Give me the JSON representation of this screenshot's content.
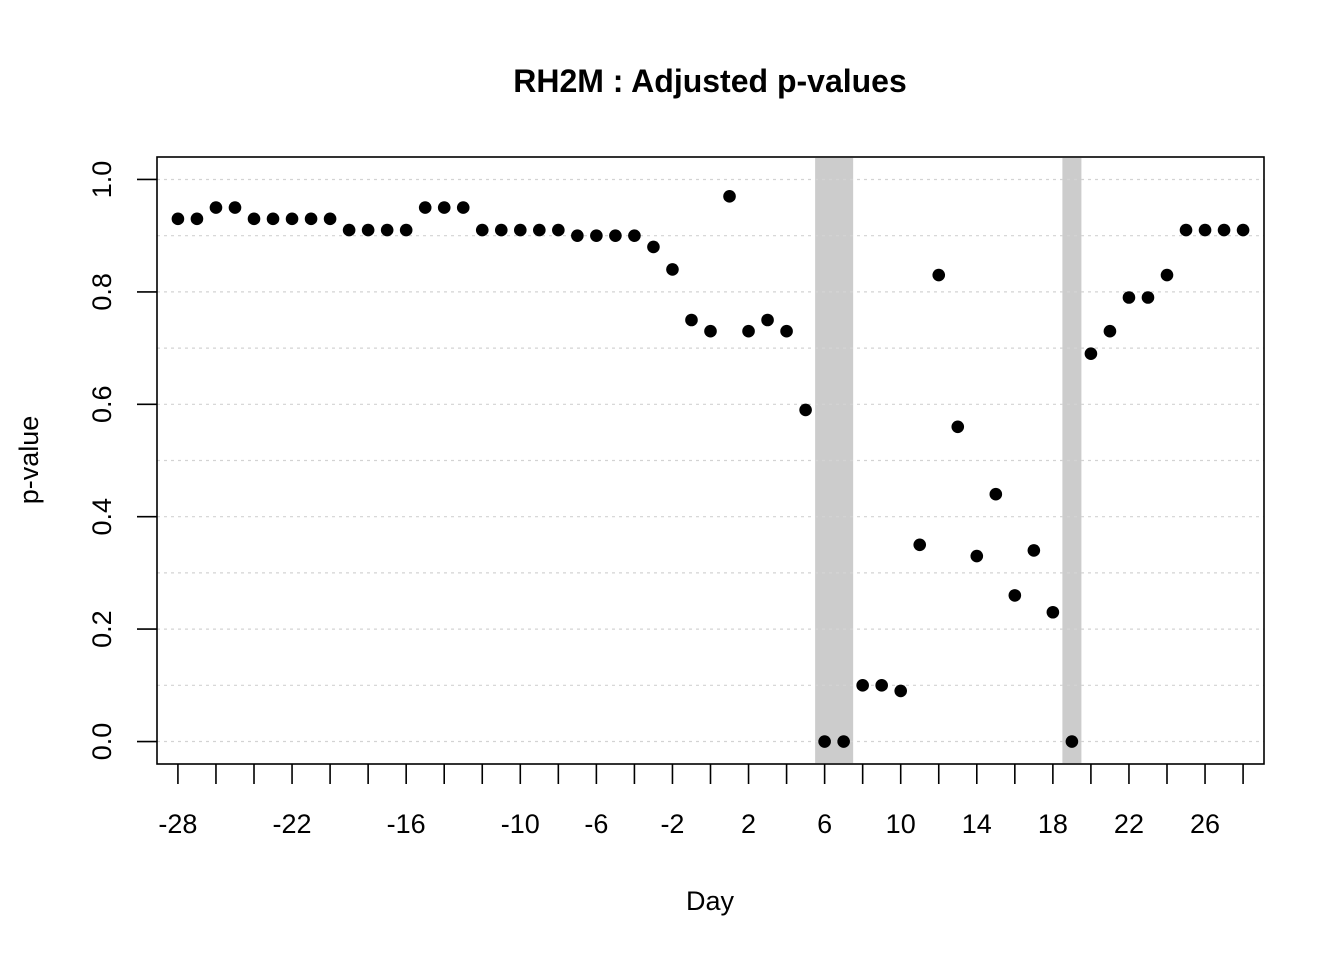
{
  "chart_data": {
    "type": "scatter",
    "title": "RH2M : Adjusted p-values",
    "xlabel": "Day",
    "ylabel": "p-value",
    "xlim": [
      -29.1,
      29.1
    ],
    "ylim": [
      -0.04,
      1.04
    ],
    "x_tick_values": [
      -28,
      -26,
      -24,
      -22,
      -20,
      -18,
      -16,
      -14,
      -12,
      -10,
      -8,
      -6,
      -4,
      -2,
      0,
      2,
      4,
      6,
      8,
      10,
      12,
      14,
      16,
      18,
      20,
      22,
      24,
      26,
      28
    ],
    "x_tick_labels": [
      "-28",
      "",
      "",
      "-22",
      "",
      "",
      "-16",
      "",
      "",
      "-10",
      "",
      "-6",
      "",
      "-2",
      "",
      "2",
      "",
      "6",
      "",
      "10",
      "",
      "14",
      "",
      "18",
      "",
      "22",
      "",
      "26",
      ""
    ],
    "y_ticks": [
      0.0,
      0.2,
      0.4,
      0.6,
      0.8,
      1.0
    ],
    "y_tick_labels": [
      "0.0",
      "0.2",
      "0.4",
      "0.6",
      "0.8",
      "1.0"
    ],
    "y_grid": [
      0.0,
      0.1,
      0.2,
      0.3,
      0.4,
      0.5,
      0.6,
      0.7,
      0.8,
      0.9,
      1.0
    ],
    "grid": "horizontal dotted",
    "shaded_bands": [
      {
        "x_start": 5.5,
        "x_end": 7.5,
        "color": "#cccccc"
      },
      {
        "x_start": 18.5,
        "x_end": 19.5,
        "color": "#cccccc"
      }
    ],
    "point_color": "#000000",
    "series": [
      {
        "x": [
          -28,
          -27,
          -26,
          -25,
          -24,
          -23,
          -22,
          -21,
          -20,
          -19,
          -18,
          -17,
          -16,
          -15,
          -14,
          -13,
          -12,
          -11,
          -10,
          -9,
          -8,
          -7,
          -6,
          -5,
          -4,
          -3,
          -2,
          -1,
          0,
          1,
          2,
          3,
          4,
          5,
          6,
          7,
          8,
          9,
          10,
          11,
          12,
          13,
          14,
          15,
          16,
          17,
          18,
          19,
          20,
          21,
          22,
          23,
          24,
          25,
          26,
          27,
          28
        ],
        "y": [
          0.93,
          0.93,
          0.95,
          0.95,
          0.93,
          0.93,
          0.93,
          0.93,
          0.93,
          0.91,
          0.91,
          0.91,
          0.91,
          0.95,
          0.95,
          0.95,
          0.91,
          0.91,
          0.91,
          0.91,
          0.91,
          0.9,
          0.9,
          0.9,
          0.9,
          0.88,
          0.84,
          0.75,
          0.73,
          0.97,
          0.73,
          0.75,
          0.73,
          0.59,
          0.0,
          0.0,
          0.1,
          0.1,
          0.09,
          0.35,
          0.83,
          0.56,
          0.33,
          0.44,
          0.26,
          0.34,
          0.23,
          0.0,
          0.69,
          0.73,
          0.79,
          0.79,
          0.83,
          0.91,
          0.91,
          0.91,
          0.91
        ]
      }
    ]
  }
}
